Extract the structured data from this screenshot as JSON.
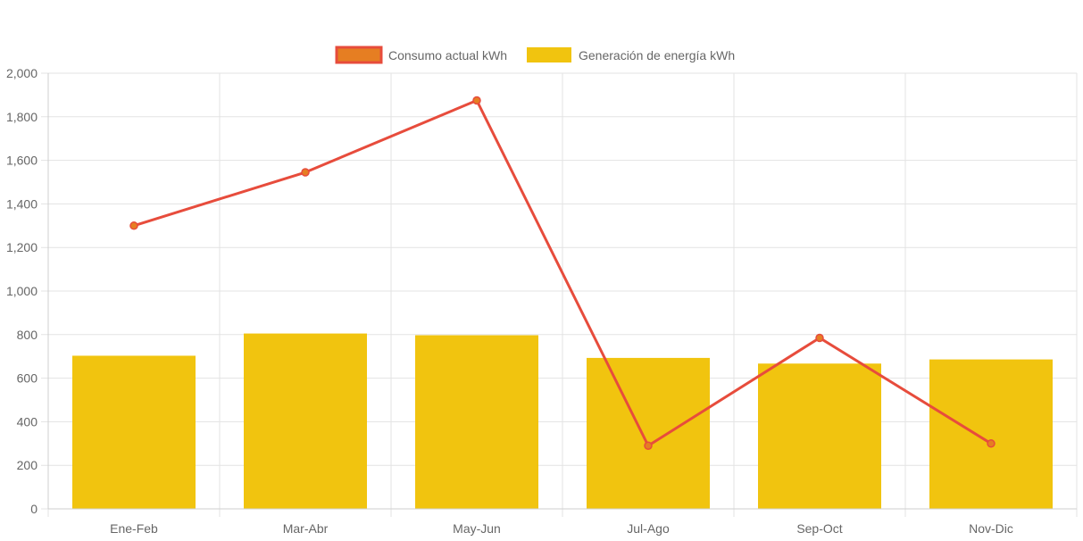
{
  "chart_data": {
    "type": "bar",
    "title": "",
    "xlabel": "",
    "ylabel": "",
    "categories": [
      "Ene-Feb",
      "Mar-Abr",
      "May-Jun",
      "Jul-Ago",
      "Sep-Oct",
      "Nov-Dic"
    ],
    "ylim": [
      0,
      2000
    ],
    "yticks": [
      "0",
      "200",
      "400",
      "600",
      "800",
      "1,000",
      "1,200",
      "1,400",
      "1,600",
      "1,800",
      "2,000"
    ],
    "ytick_values": [
      0,
      200,
      400,
      600,
      800,
      1000,
      1200,
      1400,
      1600,
      1800,
      2000
    ],
    "grid": true,
    "legend_position": "top-center",
    "series": [
      {
        "name": "Consumo actual kWh",
        "type": "line",
        "color": "#e74c3c",
        "fill_color": "#e67e22",
        "values": [
          1300,
          1545,
          1875,
          290,
          785,
          300
        ]
      },
      {
        "name": "Generación de energía kWh",
        "type": "bar",
        "color": "#f1c40f",
        "values": [
          703,
          805,
          797,
          693,
          667,
          686
        ]
      }
    ]
  }
}
